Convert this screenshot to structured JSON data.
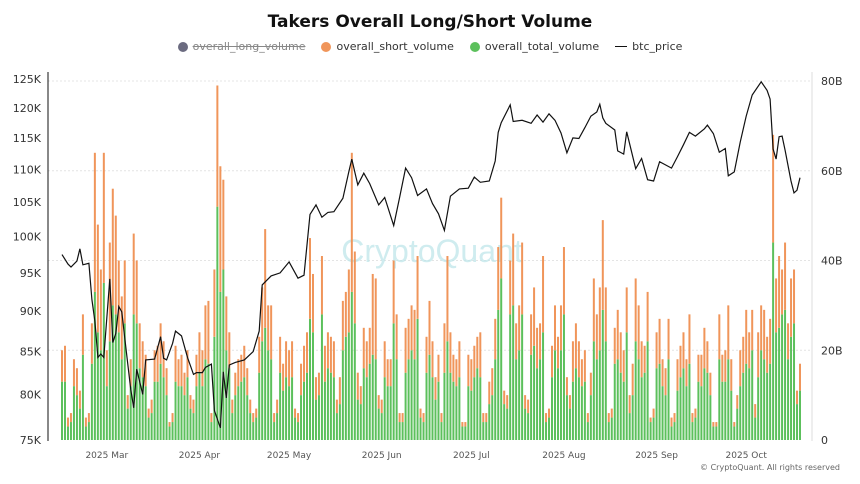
{
  "chart_data": {
    "type": "bar+line",
    "title": "Takers Overall Long/Short Volume",
    "legend": [
      {
        "name": "overall_long_volume",
        "color": "#6b6b80",
        "hidden": true
      },
      {
        "name": "overall_short_volume",
        "color": "#f0955a"
      },
      {
        "name": "overall_total_volume",
        "color": "#5cc05c"
      },
      {
        "name": "btc_price",
        "color": "#111111"
      }
    ],
    "legend_position": "top",
    "left_axis": {
      "scale": "log",
      "range": [
        75000,
        127000
      ],
      "ticks": [
        75000,
        80000,
        85000,
        90000,
        95000,
        100000,
        105000,
        110000,
        115000,
        120000,
        125000
      ],
      "tick_labels": [
        "75K",
        "80K",
        "85K",
        "90K",
        "95K",
        "100K",
        "105K",
        "110K",
        "115K",
        "120K",
        "125K"
      ]
    },
    "right_axis": {
      "scale": "linear",
      "range": [
        0,
        80
      ],
      "unit": "B",
      "ticks": [
        0,
        20,
        40,
        60,
        80
      ],
      "tick_labels": [
        "0",
        "20B",
        "40B",
        "60B",
        "80B"
      ]
    },
    "x_axis": {
      "range": [
        "2025-02-14",
        "2025-10-19"
      ],
      "tick_dates": [
        "2025-03-01",
        "2025-04-01",
        "2025-05-01",
        "2025-06-01",
        "2025-07-01",
        "2025-08-01",
        "2025-09-01",
        "2025-10-01"
      ],
      "tick_labels": [
        "2025 Mar",
        "2025 Apr",
        "2025 May",
        "2025 Jun",
        "2025 Jul",
        "2025 Aug",
        "2025 Sep",
        "2025 Oct"
      ]
    },
    "grid": "horizontal dotted",
    "stacking": "overall_short_volume stacked on overall_total_volume",
    "volume_bars_billions": [
      {
        "month": "2025-02",
        "first_day": 14,
        "total": [
          13,
          13,
          3,
          4,
          12,
          10,
          7,
          19,
          3,
          4,
          17,
          33,
          24,
          20,
          35
        ],
        "short": [
          7,
          8,
          2,
          2,
          6,
          6,
          4,
          9,
          2,
          2,
          9,
          31,
          24,
          18,
          29
        ]
      },
      {
        "month": "2025-03",
        "first_day": 1,
        "total": [
          12,
          22,
          30,
          28,
          24,
          18,
          26,
          7,
          12,
          28,
          26,
          16,
          14,
          12,
          5,
          6,
          13,
          13,
          17,
          14,
          10,
          3,
          4,
          13,
          12,
          12,
          10,
          14,
          7,
          6,
          12
        ],
        "short": [
          8,
          22,
          26,
          22,
          16,
          14,
          14,
          3,
          6,
          18,
          14,
          10,
          8,
          7,
          2,
          3,
          7,
          8,
          9,
          8,
          6,
          1,
          2,
          8,
          6,
          7,
          5,
          6,
          3,
          3,
          7
        ]
      },
      {
        "month": "2025-04",
        "first_day": 1,
        "total": [
          15,
          12,
          18,
          17,
          4,
          23,
          52,
          33,
          38,
          20,
          16,
          6,
          10,
          12,
          13,
          14,
          10,
          6,
          4,
          5,
          15,
          22,
          25,
          20,
          18,
          4,
          6,
          15,
          11,
          14
        ],
        "short": [
          9,
          8,
          12,
          14,
          2,
          15,
          27,
          28,
          20,
          12,
          8,
          3,
          5,
          6,
          6,
          7,
          6,
          3,
          2,
          2,
          8,
          12,
          22,
          10,
          12,
          2,
          3,
          8,
          6,
          8
        ]
      },
      {
        "month": "2025-05",
        "first_day": 1,
        "total": [
          12,
          14,
          5,
          4,
          10,
          13,
          15,
          27,
          24,
          9,
          10,
          28,
          13,
          16,
          15,
          14,
          6,
          8,
          20,
          23,
          24,
          33,
          26,
          9,
          8,
          16,
          14,
          17,
          19,
          18,
          7
        ],
        "short": [
          8,
          8,
          2,
          2,
          7,
          8,
          9,
          18,
          13,
          5,
          5,
          13,
          8,
          8,
          8,
          8,
          3,
          6,
          11,
          10,
          14,
          31,
          16,
          6,
          4,
          9,
          8,
          8,
          18,
          18,
          3
        ]
      },
      {
        "month": "2025-06",
        "first_day": 1,
        "total": [
          6,
          14,
          12,
          12,
          26,
          18,
          4,
          4,
          15,
          18,
          20,
          18,
          27,
          5,
          4,
          15,
          19,
          14,
          9,
          13,
          4,
          15,
          22,
          15,
          13,
          12,
          14,
          3,
          3,
          12
        ],
        "short": [
          3,
          8,
          6,
          6,
          14,
          10,
          2,
          2,
          10,
          9,
          10,
          11,
          14,
          2,
          2,
          8,
          12,
          8,
          5,
          6,
          2,
          11,
          19,
          9,
          6,
          6,
          8,
          1,
          1,
          7
        ]
      },
      {
        "month": "2025-07",
        "first_day": 1,
        "total": [
          11,
          14,
          16,
          14,
          4,
          4,
          8,
          10,
          18,
          29,
          36,
          8,
          7,
          28,
          30,
          18,
          20,
          28,
          7,
          6,
          19,
          21,
          16,
          18,
          24,
          4,
          5,
          14,
          20,
          16,
          20
        ],
        "short": [
          7,
          7,
          7,
          10,
          2,
          2,
          5,
          6,
          9,
          14,
          18,
          3,
          3,
          12,
          16,
          8,
          10,
          16,
          3,
          3,
          9,
          13,
          9,
          8,
          17,
          2,
          2,
          7,
          10,
          7,
          10
        ]
      },
      {
        "month": "2025-08",
        "first_day": 1,
        "total": [
          28,
          10,
          7,
          13,
          16,
          14,
          12,
          13,
          4,
          10,
          22,
          18,
          20,
          29,
          22,
          4,
          5,
          17,
          18,
          15,
          13,
          24,
          6,
          10,
          22,
          18,
          14,
          15,
          22,
          4,
          5
        ],
        "short": [
          15,
          4,
          3,
          9,
          10,
          8,
          6,
          7,
          2,
          5,
          14,
          10,
          14,
          20,
          12,
          2,
          2,
          8,
          11,
          9,
          7,
          10,
          4,
          7,
          14,
          12,
          8,
          6,
          11,
          1,
          2
        ]
      },
      {
        "month": "2025-09",
        "first_day": 1,
        "total": [
          16,
          17,
          12,
          10,
          18,
          3,
          4,
          11,
          14,
          16,
          12,
          17,
          4,
          5,
          13,
          12,
          16,
          15,
          10,
          3,
          3,
          18,
          13,
          13,
          18,
          11,
          3,
          7,
          12,
          15
        ],
        "short": [
          8,
          10,
          6,
          6,
          9,
          2,
          2,
          7,
          7,
          8,
          6,
          11,
          2,
          2,
          6,
          7,
          9,
          7,
          5,
          1,
          1,
          10,
          6,
          7,
          12,
          7,
          1,
          3,
          8,
          8
        ]
      },
      {
        "month": "2025-10",
        "first_day": 1,
        "total": [
          17,
          16,
          20,
          5,
          14,
          20,
          18,
          15,
          17,
          44,
          24,
          25,
          28,
          29,
          18,
          23,
          26,
          8,
          11
        ],
        "short": [
          12,
          8,
          9,
          3,
          10,
          10,
          11,
          8,
          10,
          24,
          12,
          16,
          10,
          15,
          8,
          13,
          12,
          3,
          6
        ]
      }
    ],
    "btc_price": [
      [
        "2025-02-14",
        97500
      ],
      [
        "2025-02-16",
        96200
      ],
      [
        "2025-02-17",
        95800
      ],
      [
        "2025-02-19",
        96600
      ],
      [
        "2025-02-20",
        98300
      ],
      [
        "2025-02-21",
        96100
      ],
      [
        "2025-02-23",
        96300
      ],
      [
        "2025-02-24",
        91500
      ],
      [
        "2025-02-25",
        88700
      ],
      [
        "2025-02-26",
        84300
      ],
      [
        "2025-02-27",
        84700
      ],
      [
        "2025-02-28",
        84300
      ],
      [
        "2025-03-02",
        94200
      ],
      [
        "2025-03-03",
        86100
      ],
      [
        "2025-03-04",
        87200
      ],
      [
        "2025-03-05",
        90600
      ],
      [
        "2025-03-06",
        89900
      ],
      [
        "2025-03-07",
        86700
      ],
      [
        "2025-03-09",
        80600
      ],
      [
        "2025-03-10",
        78500
      ],
      [
        "2025-03-11",
        82900
      ],
      [
        "2025-03-13",
        80000
      ],
      [
        "2025-03-14",
        84000
      ],
      [
        "2025-03-17",
        84100
      ],
      [
        "2025-03-19",
        86800
      ],
      [
        "2025-03-20",
        84200
      ],
      [
        "2025-03-21",
        84000
      ],
      [
        "2025-03-23",
        86000
      ],
      [
        "2025-03-24",
        87500
      ],
      [
        "2025-03-26",
        86900
      ],
      [
        "2025-03-28",
        84300
      ],
      [
        "2025-03-30",
        82300
      ],
      [
        "2025-03-31",
        82500
      ],
      [
        "2025-04-02",
        82500
      ],
      [
        "2025-04-03",
        83100
      ],
      [
        "2025-04-05",
        83500
      ],
      [
        "2025-04-06",
        78200
      ],
      [
        "2025-04-08",
        76300
      ],
      [
        "2025-04-09",
        82600
      ],
      [
        "2025-04-10",
        79600
      ],
      [
        "2025-04-11",
        83400
      ],
      [
        "2025-04-13",
        83700
      ],
      [
        "2025-04-16",
        84000
      ],
      [
        "2025-04-19",
        85000
      ],
      [
        "2025-04-21",
        87500
      ],
      [
        "2025-04-22",
        93400
      ],
      [
        "2025-04-25",
        94600
      ],
      [
        "2025-04-28",
        95000
      ],
      [
        "2025-05-01",
        96500
      ],
      [
        "2025-05-04",
        94300
      ],
      [
        "2025-05-06",
        94700
      ],
      [
        "2025-05-08",
        103200
      ],
      [
        "2025-05-10",
        104600
      ],
      [
        "2025-05-12",
        102800
      ],
      [
        "2025-05-14",
        103500
      ],
      [
        "2025-05-16",
        103600
      ],
      [
        "2025-05-19",
        105600
      ],
      [
        "2025-05-21",
        109600
      ],
      [
        "2025-05-22",
        111600
      ],
      [
        "2025-05-24",
        107600
      ],
      [
        "2025-05-26",
        109400
      ],
      [
        "2025-05-28",
        107800
      ],
      [
        "2025-05-31",
        104600
      ],
      [
        "2025-06-02",
        105700
      ],
      [
        "2025-06-05",
        101600
      ],
      [
        "2025-06-07",
        105700
      ],
      [
        "2025-06-09",
        110200
      ],
      [
        "2025-06-11",
        108700
      ],
      [
        "2025-06-13",
        106000
      ],
      [
        "2025-06-16",
        107000
      ],
      [
        "2025-06-18",
        104800
      ],
      [
        "2025-06-20",
        103300
      ],
      [
        "2025-06-22",
        100900
      ],
      [
        "2025-06-24",
        105900
      ],
      [
        "2025-06-27",
        107000
      ],
      [
        "2025-06-30",
        107100
      ],
      [
        "2025-07-02",
        108800
      ],
      [
        "2025-07-04",
        108000
      ],
      [
        "2025-07-07",
        108200
      ],
      [
        "2025-07-09",
        111300
      ],
      [
        "2025-07-10",
        115900
      ],
      [
        "2025-07-11",
        117500
      ],
      [
        "2025-07-14",
        120500
      ],
      [
        "2025-07-15",
        117700
      ],
      [
        "2025-07-18",
        117900
      ],
      [
        "2025-07-21",
        117400
      ],
      [
        "2025-07-23",
        118800
      ],
      [
        "2025-07-25",
        117600
      ],
      [
        "2025-07-27",
        119000
      ],
      [
        "2025-07-29",
        117900
      ],
      [
        "2025-07-31",
        115800
      ],
      [
        "2025-08-02",
        112600
      ],
      [
        "2025-08-04",
        115000
      ],
      [
        "2025-08-06",
        114900
      ],
      [
        "2025-08-08",
        116700
      ],
      [
        "2025-08-10",
        118600
      ],
      [
        "2025-08-12",
        119300
      ],
      [
        "2025-08-13",
        120600
      ],
      [
        "2025-08-14",
        118300
      ],
      [
        "2025-08-15",
        117400
      ],
      [
        "2025-08-18",
        116300
      ],
      [
        "2025-08-19",
        112900
      ],
      [
        "2025-08-21",
        112400
      ],
      [
        "2025-08-22",
        116000
      ],
      [
        "2025-08-25",
        110100
      ],
      [
        "2025-08-27",
        111700
      ],
      [
        "2025-08-29",
        108400
      ],
      [
        "2025-08-31",
        108200
      ],
      [
        "2025-09-02",
        111200
      ],
      [
        "2025-09-04",
        110700
      ],
      [
        "2025-09-06",
        110200
      ],
      [
        "2025-09-08",
        112000
      ],
      [
        "2025-09-10",
        113900
      ],
      [
        "2025-09-12",
        115900
      ],
      [
        "2025-09-14",
        115300
      ],
      [
        "2025-09-17",
        116500
      ],
      [
        "2025-09-18",
        117100
      ],
      [
        "2025-09-20",
        115700
      ],
      [
        "2025-09-22",
        112700
      ],
      [
        "2025-09-24",
        113300
      ],
      [
        "2025-09-25",
        109000
      ],
      [
        "2025-09-27",
        109600
      ],
      [
        "2025-09-29",
        114300
      ],
      [
        "2025-10-01",
        118600
      ],
      [
        "2025-10-03",
        122200
      ],
      [
        "2025-10-06",
        124500
      ],
      [
        "2025-10-08",
        123000
      ],
      [
        "2025-10-09",
        121500
      ],
      [
        "2025-10-10",
        113200
      ],
      [
        "2025-10-11",
        111600
      ],
      [
        "2025-10-12",
        115200
      ],
      [
        "2025-10-13",
        115300
      ],
      [
        "2025-10-14",
        113000
      ],
      [
        "2025-10-16",
        108200
      ],
      [
        "2025-10-17",
        106400
      ],
      [
        "2025-10-18",
        106800
      ],
      [
        "2025-10-19",
        108700
      ]
    ],
    "watermark": "CryptoQuant"
  },
  "footer": {
    "copyright": "© CryptoQuant. All rights reserved"
  }
}
